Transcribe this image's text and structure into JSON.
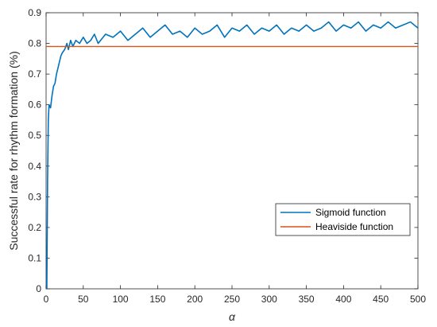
{
  "chart_data": {
    "type": "line",
    "title": "",
    "xlabel": "α",
    "ylabel": "Successful rate for rhythm formation (%)",
    "xlim": [
      0,
      500
    ],
    "ylim": [
      0,
      0.9
    ],
    "xticks": [
      0,
      50,
      100,
      150,
      200,
      250,
      300,
      350,
      400,
      450,
      500
    ],
    "yticks": [
      0,
      0.1,
      0.2,
      0.3,
      0.4,
      0.5,
      0.6,
      0.7,
      0.8,
      0.9
    ],
    "xtick_labels": [
      "0",
      "50",
      "100",
      "150",
      "200",
      "250",
      "300",
      "350",
      "400",
      "450",
      "500"
    ],
    "ytick_labels": [
      "0",
      "0.1",
      "0.2",
      "0.3",
      "0.4",
      "0.5",
      "0.6",
      "0.7",
      "0.8",
      "0.9"
    ],
    "grid": false,
    "legend_position": "lower-right",
    "series": [
      {
        "name": "Sigmoid function",
        "color": "#0072BD",
        "x": [
          1,
          2,
          3,
          4,
          6,
          8,
          10,
          12,
          14,
          16,
          18,
          20,
          22,
          25,
          28,
          30,
          33,
          36,
          40,
          45,
          50,
          55,
          60,
          65,
          70,
          80,
          90,
          100,
          110,
          120,
          130,
          140,
          150,
          160,
          170,
          180,
          190,
          200,
          210,
          220,
          230,
          240,
          250,
          260,
          270,
          280,
          290,
          300,
          310,
          320,
          330,
          340,
          350,
          360,
          370,
          380,
          390,
          400,
          410,
          420,
          430,
          440,
          450,
          460,
          470,
          480,
          490,
          500
        ],
        "y": [
          0.0,
          0.35,
          0.55,
          0.6,
          0.59,
          0.63,
          0.66,
          0.67,
          0.7,
          0.72,
          0.74,
          0.76,
          0.77,
          0.78,
          0.8,
          0.78,
          0.81,
          0.79,
          0.81,
          0.8,
          0.82,
          0.8,
          0.81,
          0.83,
          0.8,
          0.83,
          0.82,
          0.84,
          0.81,
          0.83,
          0.85,
          0.82,
          0.84,
          0.86,
          0.83,
          0.84,
          0.82,
          0.85,
          0.83,
          0.84,
          0.86,
          0.82,
          0.85,
          0.84,
          0.86,
          0.83,
          0.85,
          0.84,
          0.86,
          0.83,
          0.85,
          0.84,
          0.86,
          0.84,
          0.85,
          0.87,
          0.84,
          0.86,
          0.85,
          0.87,
          0.84,
          0.86,
          0.85,
          0.87,
          0.85,
          0.86,
          0.87,
          0.85
        ]
      },
      {
        "name": "Heaviside function",
        "color": "#D95319",
        "x": [
          0,
          500
        ],
        "y": [
          0.79,
          0.79
        ]
      }
    ]
  }
}
